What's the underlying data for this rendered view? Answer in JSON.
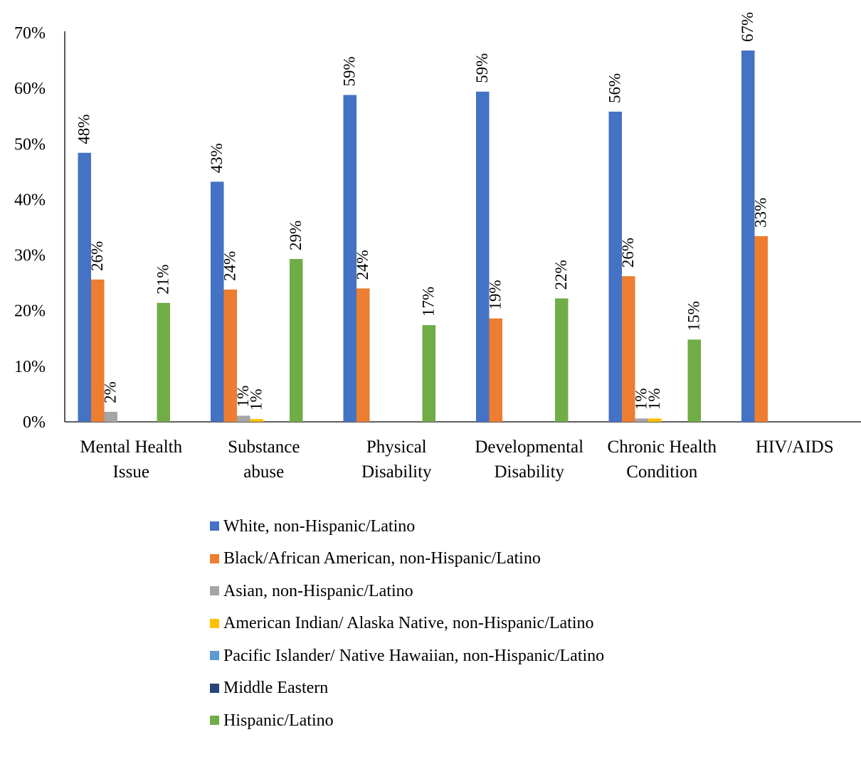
{
  "chart_data": {
    "type": "bar",
    "categories": [
      [
        "Mental Health",
        "Issue"
      ],
      [
        "Substance",
        "abuse"
      ],
      [
        "Physical",
        "Disability"
      ],
      [
        "Developmental",
        "Disability"
      ],
      [
        "Chronic Health",
        "Condition"
      ],
      [
        "HIV/AIDS"
      ]
    ],
    "ylim": [
      0,
      70
    ],
    "yticks": [
      0,
      10,
      20,
      30,
      40,
      50,
      60,
      70
    ],
    "ytick_labels": [
      "0%",
      "10%",
      "20%",
      "30%",
      "40%",
      "50%",
      "60%",
      "70%"
    ],
    "value_format": "percent",
    "title": "",
    "xlabel": "",
    "ylabel": "",
    "legend_position": "bottom",
    "grid": false,
    "series": [
      {
        "name": "White, non-Hispanic/Latino",
        "color": "#4472C4",
        "values": [
          48.4,
          43.2,
          58.8,
          59.4,
          55.8,
          66.8
        ],
        "labels": [
          "48%",
          "43%",
          "59%",
          "59%",
          "56%",
          "67%"
        ]
      },
      {
        "name": "Black/African American, non-Hispanic/Latino",
        "color": "#ED7D31",
        "values": [
          25.6,
          23.8,
          24.0,
          18.6,
          26.2,
          33.4
        ],
        "labels": [
          "26%",
          "24%",
          "24%",
          "19%",
          "26%",
          "33%"
        ]
      },
      {
        "name": "Asian, non-Hispanic/Latino",
        "color": "#A5A5A5",
        "values": [
          1.8,
          1.1,
          0,
          0,
          0.6,
          0
        ],
        "labels": [
          "2%",
          "1%",
          "",
          "",
          "1%",
          ""
        ]
      },
      {
        "name": "American Indian/ Alaska Native, non-Hispanic/Latino",
        "color": "#FFC000",
        "values": [
          0,
          0.5,
          0,
          0,
          0.6,
          0
        ],
        "labels": [
          "",
          "1%",
          "",
          "",
          "1%",
          ""
        ]
      },
      {
        "name": "Pacific Islander/ Native Hawaiian, non-Hispanic/Latino",
        "color": "#5B9BD5",
        "values": [
          0,
          0,
          0,
          0,
          0,
          0
        ],
        "labels": [
          "",
          "",
          "",
          "",
          "",
          ""
        ]
      },
      {
        "name": "Middle Eastern",
        "color": "#264478",
        "values": [
          0,
          0,
          0,
          0,
          0,
          0
        ],
        "labels": [
          "",
          "",
          "",
          "",
          "",
          ""
        ]
      },
      {
        "name": "Hispanic/Latino",
        "color": "#70AD47",
        "values": [
          21.4,
          29.3,
          17.4,
          22.2,
          14.8,
          0
        ],
        "labels": [
          "21%",
          "29%",
          "17%",
          "22%",
          "15%",
          ""
        ]
      }
    ]
  }
}
